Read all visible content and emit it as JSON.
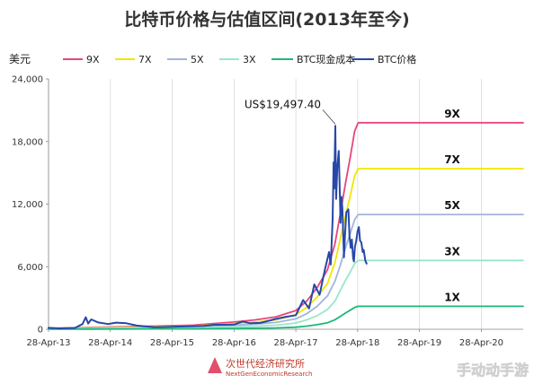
{
  "chart_data": {
    "type": "line",
    "title": "比特币价格与估值区间(2013年至今)",
    "ylabel": "美元",
    "ylim": [
      0,
      24000
    ],
    "yticks": [
      "24,000",
      "18,000",
      "12,000",
      "6,000",
      "0"
    ],
    "xlim": [
      "2013-04-28",
      "2020-12-31"
    ],
    "xticks": [
      "28-Apr-13",
      "28-Apr-14",
      "28-Apr-15",
      "28-Apr-16",
      "28-Apr-17",
      "28-Apr-18",
      "28-Apr-19",
      "28-Apr-20"
    ],
    "grid": "vertical",
    "legend_position": "top",
    "annotation": {
      "text": "US$19,497.40",
      "x": "2017-12-17",
      "y": 19497.4
    },
    "series": [
      {
        "name": "9X",
        "color": "#e8457a",
        "end_label": "9X",
        "points": [
          [
            "2013-04-28",
            90
          ],
          [
            "2014-01-01",
            180
          ],
          [
            "2015-01-01",
            300
          ],
          [
            "2015-09-01",
            400
          ],
          [
            "2016-04-28",
            700
          ],
          [
            "2016-09-01",
            900
          ],
          [
            "2017-01-01",
            1200
          ],
          [
            "2017-04-28",
            1800
          ],
          [
            "2017-07-01",
            2700
          ],
          [
            "2017-09-01",
            4000
          ],
          [
            "2017-11-01",
            5700
          ],
          [
            "2017-12-15",
            8200
          ],
          [
            "2018-01-15",
            11000
          ],
          [
            "2018-02-15",
            14000
          ],
          [
            "2018-03-15",
            16500
          ],
          [
            "2018-04-10",
            19000
          ],
          [
            "2018-05-01",
            19800
          ],
          [
            "2018-05-15",
            19800
          ],
          [
            "2020-12-31",
            19800
          ]
        ]
      },
      {
        "name": "7X",
        "color": "#f2e600",
        "end_label": "7X",
        "points": [
          [
            "2013-04-28",
            70
          ],
          [
            "2014-01-01",
            140
          ],
          [
            "2015-01-01",
            230
          ],
          [
            "2015-09-01",
            310
          ],
          [
            "2016-04-28",
            550
          ],
          [
            "2016-09-01",
            700
          ],
          [
            "2017-01-01",
            900
          ],
          [
            "2017-04-28",
            1400
          ],
          [
            "2017-07-01",
            2100
          ],
          [
            "2017-09-01",
            3100
          ],
          [
            "2017-11-01",
            4400
          ],
          [
            "2017-12-15",
            6400
          ],
          [
            "2018-01-15",
            8600
          ],
          [
            "2018-02-15",
            10900
          ],
          [
            "2018-03-15",
            12800
          ],
          [
            "2018-04-10",
            14700
          ],
          [
            "2018-05-01",
            15400
          ],
          [
            "2018-05-15",
            15400
          ],
          [
            "2020-12-31",
            15400
          ]
        ]
      },
      {
        "name": "5X",
        "color": "#a3b4dc",
        "end_label": "5X",
        "points": [
          [
            "2013-04-28",
            50
          ],
          [
            "2014-01-01",
            100
          ],
          [
            "2015-01-01",
            160
          ],
          [
            "2015-09-01",
            220
          ],
          [
            "2016-04-28",
            390
          ],
          [
            "2016-09-01",
            500
          ],
          [
            "2017-01-01",
            650
          ],
          [
            "2017-04-28",
            1000
          ],
          [
            "2017-07-01",
            1500
          ],
          [
            "2017-09-01",
            2200
          ],
          [
            "2017-11-01",
            3200
          ],
          [
            "2017-12-15",
            4600
          ],
          [
            "2018-01-15",
            6100
          ],
          [
            "2018-02-15",
            7800
          ],
          [
            "2018-03-15",
            9200
          ],
          [
            "2018-04-10",
            10500
          ],
          [
            "2018-05-01",
            11000
          ],
          [
            "2018-05-15",
            11000
          ],
          [
            "2020-12-31",
            11000
          ]
        ]
      },
      {
        "name": "3X",
        "color": "#98e8c7",
        "end_label": "3X",
        "points": [
          [
            "2013-04-28",
            30
          ],
          [
            "2014-01-01",
            60
          ],
          [
            "2015-01-01",
            100
          ],
          [
            "2015-09-01",
            130
          ],
          [
            "2016-04-28",
            230
          ],
          [
            "2016-09-01",
            300
          ],
          [
            "2017-01-01",
            390
          ],
          [
            "2017-04-28",
            600
          ],
          [
            "2017-07-01",
            900
          ],
          [
            "2017-09-01",
            1300
          ],
          [
            "2017-11-01",
            1900
          ],
          [
            "2017-12-15",
            2700
          ],
          [
            "2018-01-15",
            3700
          ],
          [
            "2018-02-15",
            4700
          ],
          [
            "2018-03-15",
            5500
          ],
          [
            "2018-04-10",
            6300
          ],
          [
            "2018-05-01",
            6600
          ],
          [
            "2018-05-15",
            6600
          ],
          [
            "2020-12-31",
            6600
          ]
        ]
      },
      {
        "name": "BTC现金成本",
        "color": "#1cb87a",
        "end_label": "1X",
        "points": [
          [
            "2013-04-28",
            10
          ],
          [
            "2014-01-01",
            20
          ],
          [
            "2015-01-01",
            33
          ],
          [
            "2015-09-01",
            45
          ],
          [
            "2016-04-28",
            77
          ],
          [
            "2016-09-01",
            100
          ],
          [
            "2017-01-01",
            130
          ],
          [
            "2017-04-28",
            200
          ],
          [
            "2017-07-01",
            300
          ],
          [
            "2017-09-01",
            440
          ],
          [
            "2017-11-01",
            630
          ],
          [
            "2017-12-15",
            910
          ],
          [
            "2018-01-15",
            1220
          ],
          [
            "2018-02-15",
            1560
          ],
          [
            "2018-03-15",
            1830
          ],
          [
            "2018-04-10",
            2100
          ],
          [
            "2018-05-01",
            2200
          ],
          [
            "2018-05-15",
            2200
          ],
          [
            "2020-12-31",
            2200
          ]
        ]
      },
      {
        "name": "BTC价格",
        "color": "#2748a8",
        "points": [
          [
            "2013-04-28",
            140
          ],
          [
            "2013-07-01",
            90
          ],
          [
            "2013-10-01",
            130
          ],
          [
            "2013-11-15",
            500
          ],
          [
            "2013-12-04",
            1150
          ],
          [
            "2013-12-18",
            550
          ],
          [
            "2014-01-05",
            950
          ],
          [
            "2014-02-15",
            650
          ],
          [
            "2014-04-15",
            500
          ],
          [
            "2014-06-01",
            640
          ],
          [
            "2014-08-01",
            580
          ],
          [
            "2014-10-01",
            350
          ],
          [
            "2015-01-15",
            200
          ],
          [
            "2015-04-28",
            230
          ],
          [
            "2015-08-01",
            280
          ],
          [
            "2015-11-01",
            330
          ],
          [
            "2016-01-01",
            430
          ],
          [
            "2016-04-28",
            450
          ],
          [
            "2016-06-18",
            750
          ],
          [
            "2016-08-01",
            580
          ],
          [
            "2016-10-01",
            610
          ],
          [
            "2017-01-01",
            1000
          ],
          [
            "2017-03-01",
            1200
          ],
          [
            "2017-04-28",
            1350
          ],
          [
            "2017-06-10",
            2800
          ],
          [
            "2017-07-15",
            2000
          ],
          [
            "2017-08-15",
            4300
          ],
          [
            "2017-09-15",
            3300
          ],
          [
            "2017-10-15",
            5600
          ],
          [
            "2017-11-10",
            7400
          ],
          [
            "2017-11-20",
            6200
          ],
          [
            "2017-12-01",
            10500
          ],
          [
            "2017-12-07",
            16000
          ],
          [
            "2017-12-10",
            13500
          ],
          [
            "2017-12-17",
            19497.4
          ],
          [
            "2017-12-22",
            12500
          ],
          [
            "2017-12-29",
            15500
          ],
          [
            "2018-01-06",
            17100
          ],
          [
            "2018-01-12",
            13500
          ],
          [
            "2018-01-17",
            10200
          ],
          [
            "2018-01-22",
            12700
          ],
          [
            "2018-01-28",
            11500
          ],
          [
            "2018-02-06",
            6900
          ],
          [
            "2018-02-12",
            8900
          ],
          [
            "2018-02-20",
            11200
          ],
          [
            "2018-03-04",
            11500
          ],
          [
            "2018-03-11",
            8900
          ],
          [
            "2018-03-18",
            7800
          ],
          [
            "2018-03-25",
            8600
          ],
          [
            "2018-04-01",
            6800
          ],
          [
            "2018-04-06",
            6500
          ],
          [
            "2018-04-12",
            7900
          ],
          [
            "2018-04-20",
            8500
          ],
          [
            "2018-04-28",
            9400
          ],
          [
            "2018-05-05",
            9800
          ],
          [
            "2018-05-12",
            8500
          ],
          [
            "2018-05-20",
            8300
          ],
          [
            "2018-05-28",
            7400
          ],
          [
            "2018-06-03",
            7600
          ],
          [
            "2018-06-12",
            6600
          ],
          [
            "2018-06-20",
            6300
          ]
        ]
      }
    ]
  },
  "watermark": {
    "text": "次世代经济研究所",
    "subtext": "NextGenEconomicResearch",
    "corner": "手动动手游"
  }
}
